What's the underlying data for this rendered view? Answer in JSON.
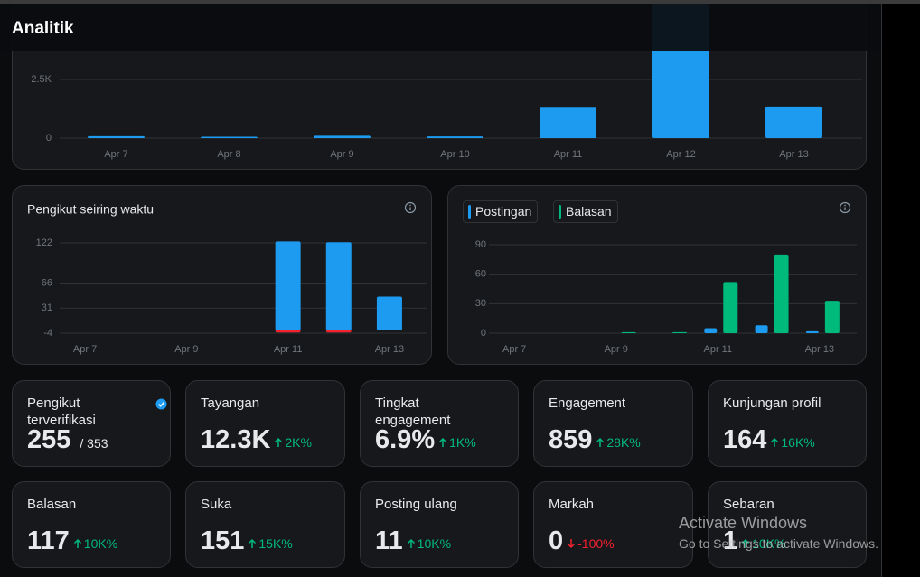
{
  "header": {
    "title": "Analitik"
  },
  "chart_data": [
    {
      "type": "bar",
      "categories": [
        "Apr 7",
        "Apr 8",
        "Apr 9",
        "Apr 10",
        "Apr 11",
        "Apr 12",
        "Apr 13"
      ],
      "series": [
        {
          "color": "#1d9bf0",
          "values": [
            80,
            60,
            100,
            70,
            1300,
            9400,
            1350
          ]
        }
      ],
      "ylim": [
        0,
        10000
      ],
      "yticks": [
        0,
        {
          "value": 2500,
          "label": "2.5K"
        }
      ],
      "grid": true
    },
    {
      "type": "bar",
      "title": "Pengikut seiring waktu",
      "categories": [
        "Apr 7",
        null,
        "Apr 9",
        null,
        "Apr 11",
        null,
        "Apr 13"
      ],
      "series": [
        {
          "color": "#1d9bf0",
          "values": [
            0,
            0,
            0,
            0,
            124,
            123,
            47
          ]
        },
        {
          "color": "#f4212e",
          "values": [
            0,
            0,
            0,
            0,
            -3,
            -3,
            0
          ]
        }
      ],
      "ylim": [
        -4,
        122
      ],
      "yticks": [
        -4,
        31,
        66,
        122
      ],
      "grid": true
    },
    {
      "type": "grouped_bar",
      "categories": [
        "Apr 7",
        null,
        "Apr 9",
        null,
        "Apr 11",
        null,
        "Apr 13"
      ],
      "series": [
        {
          "name": "Postingan",
          "color": "#1d9bf0",
          "values": [
            0,
            0,
            0,
            0,
            5,
            8,
            2
          ]
        },
        {
          "name": "Balasan",
          "color": "#00ba7c",
          "values": [
            0,
            0,
            1,
            1,
            52,
            80,
            33
          ]
        }
      ],
      "ylim": [
        0,
        90
      ],
      "yticks": [
        0,
        30,
        60,
        90
      ],
      "grid": true
    }
  ],
  "cards": [
    {
      "title": "Pengikut terverifikasi",
      "value": "255",
      "secondary": "/ 353",
      "verified": true
    },
    {
      "title": "Tayangan",
      "value": "12.3K",
      "change": "2K%",
      "trend": "up"
    },
    {
      "title": "Tingkat engagement",
      "value": "6.9%",
      "change": "1K%",
      "trend": "up"
    },
    {
      "title": "Engagement",
      "value": "859",
      "change": "28K%",
      "trend": "up"
    },
    {
      "title": "Kunjungan profil",
      "value": "164",
      "change": "16K%",
      "trend": "up"
    },
    {
      "title": "Balasan",
      "value": "117",
      "change": "10K%",
      "trend": "up"
    },
    {
      "title": "Suka",
      "value": "151",
      "change": "15K%",
      "trend": "up"
    },
    {
      "title": "Posting ulang",
      "value": "11",
      "change": "10K%",
      "trend": "up"
    },
    {
      "title": "Markah",
      "value": "0",
      "change": "-100%",
      "trend": "down"
    },
    {
      "title": "Sebaran",
      "value": "1",
      "change": "10K%",
      "trend": "up"
    }
  ],
  "watermark": {
    "title": "Activate Windows",
    "text": "Go to Settings to activate Windows."
  }
}
